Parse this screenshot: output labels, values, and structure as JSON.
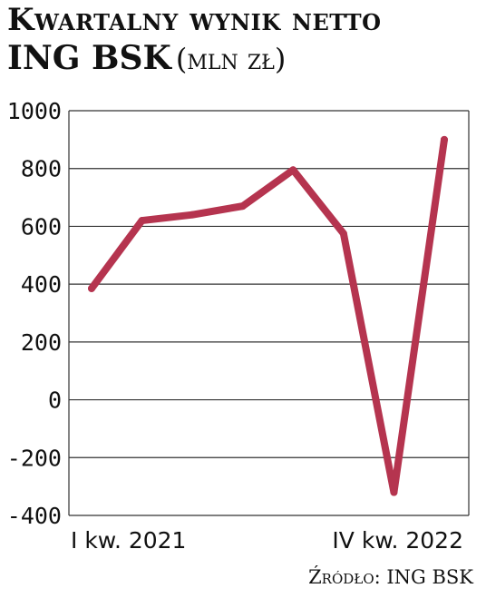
{
  "header": {
    "title_line1": "Kwartalny wynik netto",
    "title_bold": "ING BSK",
    "title_unit": "(mln zł)"
  },
  "chart_data": {
    "type": "line",
    "title": "Kwartalny wynik netto ING BSK (mln zł)",
    "xlabel": "",
    "ylabel": "",
    "ylim": [
      -400,
      1000
    ],
    "yticks": [
      1000,
      800,
      600,
      400,
      200,
      0,
      -200,
      -400
    ],
    "grid": true,
    "line_color": "#b5344f",
    "x_labels": [
      "I kw. 2021",
      "",
      "",
      "",
      "",
      "",
      "",
      "IV kw. 2022"
    ],
    "series": [
      {
        "values": [
          385,
          620,
          640,
          670,
          795,
          575,
          -320,
          900
        ]
      }
    ]
  },
  "footer": {
    "source": "Źródło: ING BSK"
  }
}
